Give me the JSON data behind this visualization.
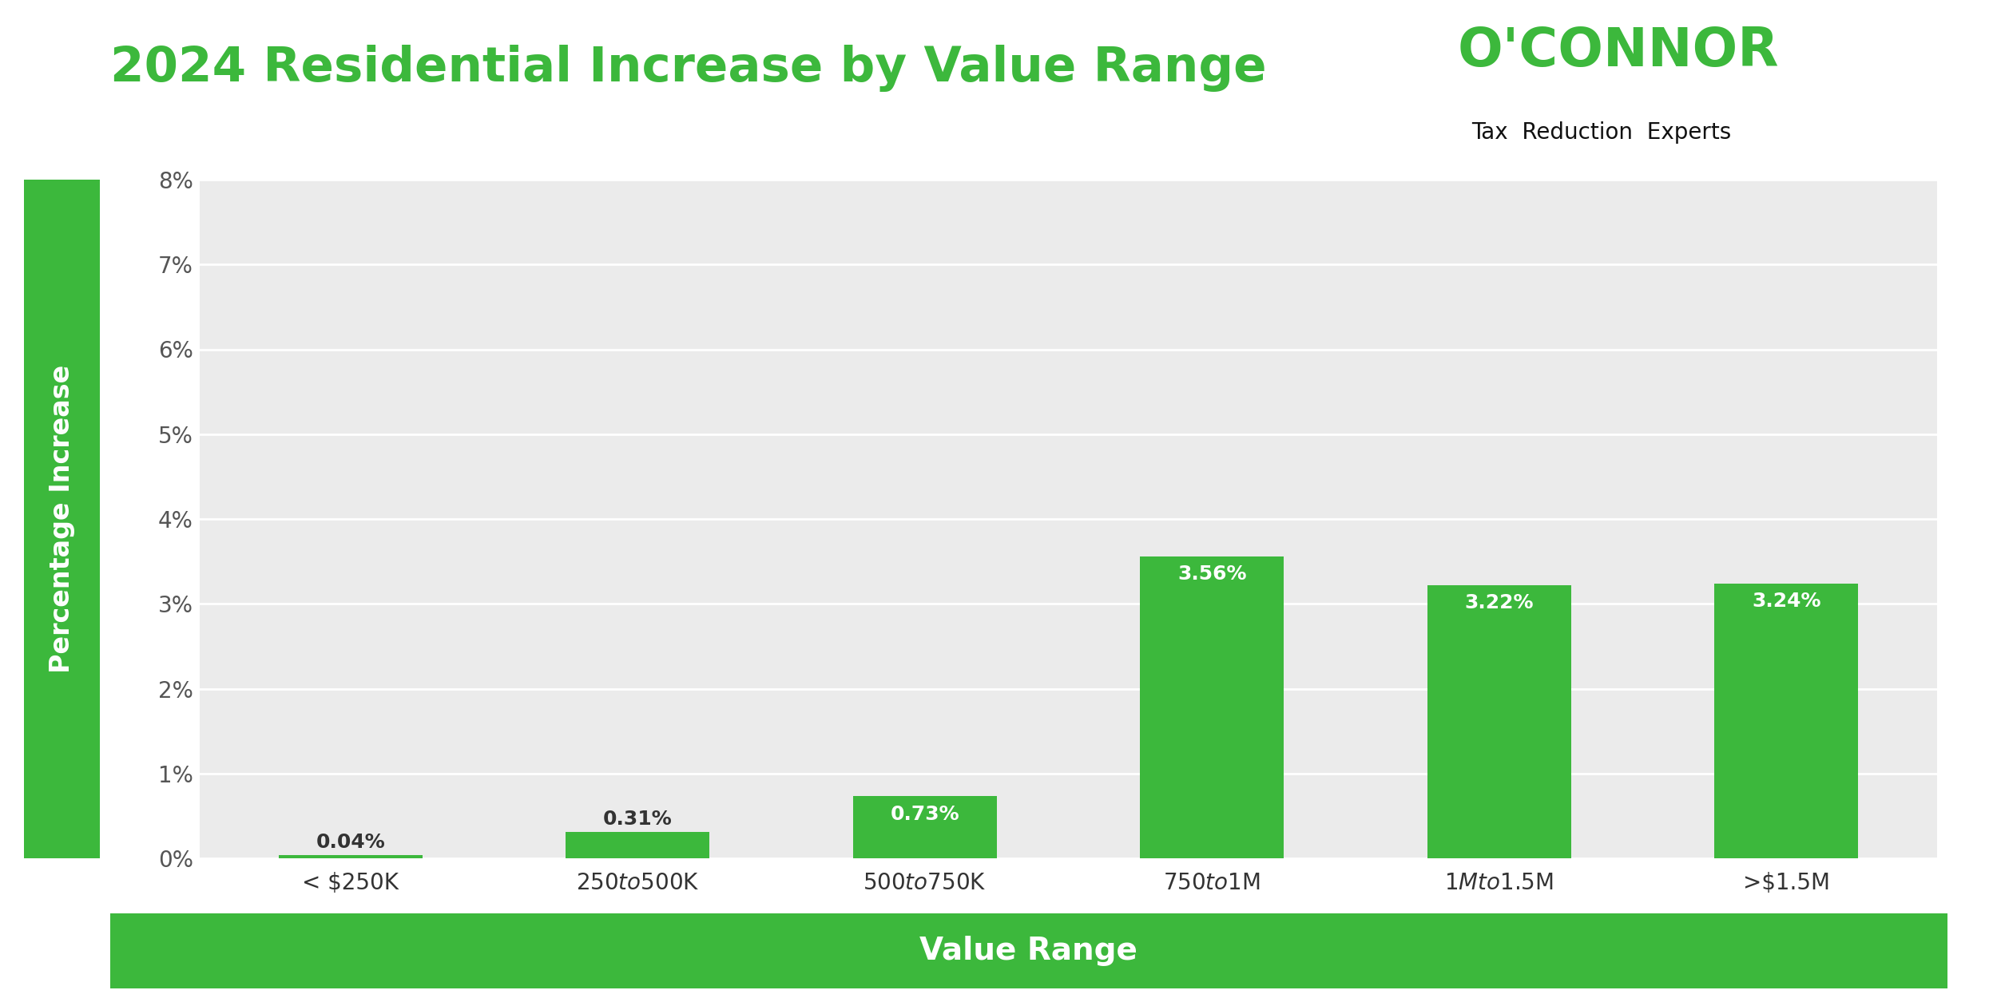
{
  "title": "2024 Residential Increase by Value Range",
  "categories": [
    "< $250K",
    "$250 to $500K",
    "$500 to $750K",
    "$750 to $1M",
    "$1M to $1.5M",
    ">$1.5M"
  ],
  "values": [
    0.04,
    0.31,
    0.73,
    3.56,
    3.22,
    3.24
  ],
  "bar_color": "#3cb83c",
  "ylabel": "Percentage Increase",
  "xlabel_box_label": "Value Range",
  "xlabel_box_color": "#3cb83c",
  "xlabel_box_text_color": "#ffffff",
  "ylim": [
    0,
    8
  ],
  "yticks": [
    0,
    1,
    2,
    3,
    4,
    5,
    6,
    7,
    8
  ],
  "ytick_labels": [
    "0%",
    "1%",
    "2%",
    "3%",
    "4%",
    "5%",
    "6%",
    "7%",
    "8%"
  ],
  "title_color": "#3cb83c",
  "title_fontsize": 44,
  "ylabel_fontsize": 24,
  "tick_fontsize": 20,
  "bar_label_fontsize": 18,
  "xlabel_label_fontsize": 28,
  "background_color": "#ebebeb",
  "figure_background": "#ffffff",
  "grid_color": "#ffffff",
  "ylabel_bg_color": "#3cb83c",
  "ylabel_text_color": "#ffffff",
  "oconnor_text": "O'CONNOR",
  "oconnor_sub": "Tax  Reduction  Experts",
  "oconnor_color": "#3cb83c",
  "oconnor_sub_color": "#111111",
  "oconnor_fontsize": 48,
  "oconnor_sub_fontsize": 20
}
